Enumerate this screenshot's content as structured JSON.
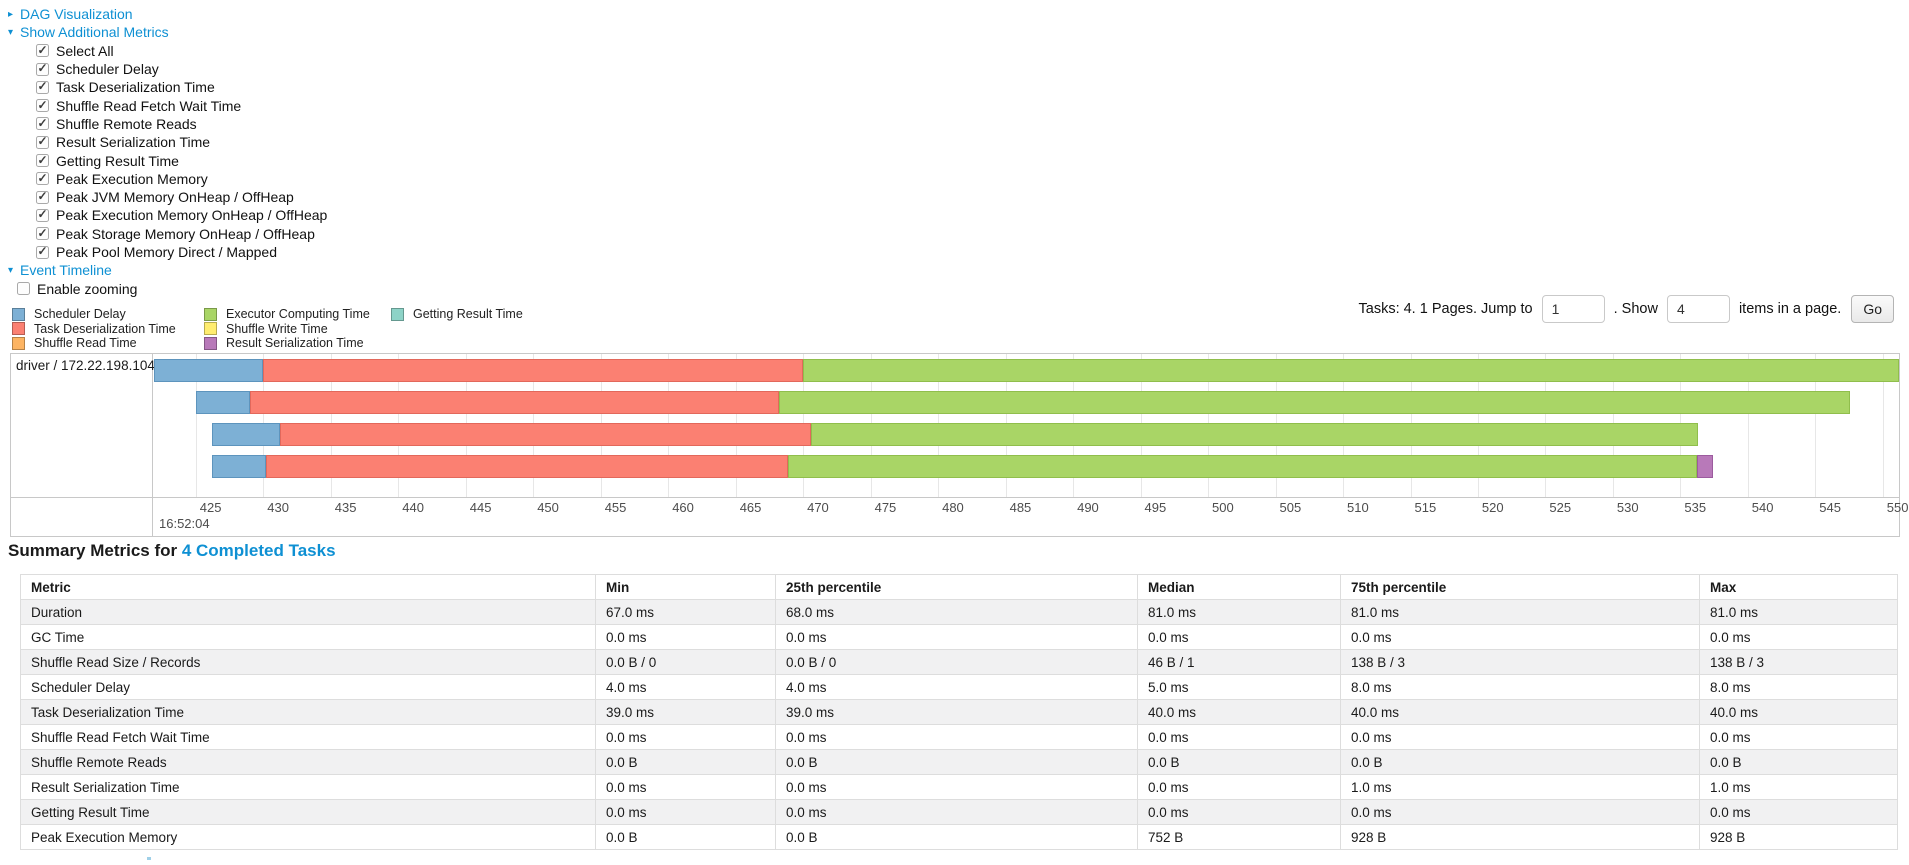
{
  "tree": {
    "dag_link": "DAG Visualization",
    "metrics_link": "Show Additional Metrics",
    "timeline_link": "Event Timeline",
    "metric_checkboxes": [
      {
        "label": "Select All",
        "checked": true
      },
      {
        "label": "Scheduler Delay",
        "checked": true
      },
      {
        "label": "Task Deserialization Time",
        "checked": true
      },
      {
        "label": "Shuffle Read Fetch Wait Time",
        "checked": true
      },
      {
        "label": "Shuffle Remote Reads",
        "checked": true
      },
      {
        "label": "Result Serialization Time",
        "checked": true
      },
      {
        "label": "Getting Result Time",
        "checked": true
      },
      {
        "label": "Peak Execution Memory",
        "checked": true
      },
      {
        "label": "Peak JVM Memory OnHeap / OffHeap",
        "checked": true
      },
      {
        "label": "Peak Execution Memory OnHeap / OffHeap",
        "checked": true
      },
      {
        "label": "Peak Storage Memory OnHeap / OffHeap",
        "checked": true
      },
      {
        "label": "Peak Pool Memory Direct / Mapped",
        "checked": true
      }
    ],
    "enable_zooming": {
      "label": "Enable zooming",
      "checked": false
    }
  },
  "legend": {
    "columns": [
      [
        {
          "label": "Scheduler Delay",
          "color": "#7DB0D5"
        },
        {
          "label": "Task Deserialization Time",
          "color": "#FB8072"
        },
        {
          "label": "Shuffle Read Time",
          "color": "#FDB462"
        }
      ],
      [
        {
          "label": "Executor Computing Time",
          "color": "#A9D566"
        },
        {
          "label": "Shuffle Write Time",
          "color": "#FFED6F"
        },
        {
          "label": "Result Serialization Time",
          "color": "#B879B9"
        }
      ],
      [
        {
          "label": "Getting Result Time",
          "color": "#8DD3C7"
        }
      ]
    ]
  },
  "pagination": {
    "prefix": "Tasks: 4. 1 Pages. Jump to",
    "jump_value": "1",
    "mid": ". Show",
    "show_value": "4",
    "suffix": "items in a page.",
    "go_label": "Go"
  },
  "chart_data": {
    "type": "timeline",
    "group_label": "driver / 172.22.198.104",
    "axis": {
      "domain_start": 421.9,
      "domain_end": 551.2,
      "tick_start": 425,
      "tick_step": 5,
      "tick_end": 550,
      "major_label": "16:52:04"
    },
    "colors": {
      "scheduler": {
        "fill": "#7DB0D5",
        "border": "#5D94BD"
      },
      "deserialization": {
        "fill": "#FB8072",
        "border": "#E2685B"
      },
      "compute": {
        "fill": "#A9D566",
        "border": "#90BE4C"
      },
      "result_ser": {
        "fill": "#B879B9",
        "border": "#9C5B9E"
      }
    },
    "tasks": [
      {
        "segments": [
          {
            "type": "scheduler",
            "from": 421.9,
            "to": 430.0
          },
          {
            "type": "deserialization",
            "from": 430.0,
            "to": 470.0
          },
          {
            "type": "compute",
            "from": 470.0,
            "to": 551.2
          }
        ]
      },
      {
        "segments": [
          {
            "type": "scheduler",
            "from": 425.0,
            "to": 429.0
          },
          {
            "type": "deserialization",
            "from": 429.0,
            "to": 468.2
          },
          {
            "type": "compute",
            "from": 468.2,
            "to": 547.6
          }
        ]
      },
      {
        "segments": [
          {
            "type": "scheduler",
            "from": 426.2,
            "to": 431.2
          },
          {
            "type": "deserialization",
            "from": 431.2,
            "to": 470.6
          },
          {
            "type": "compute",
            "from": 470.6,
            "to": 536.3
          }
        ]
      },
      {
        "segments": [
          {
            "type": "scheduler",
            "from": 426.2,
            "to": 430.2
          },
          {
            "type": "deserialization",
            "from": 430.2,
            "to": 468.9
          },
          {
            "type": "compute",
            "from": 468.9,
            "to": 536.2
          },
          {
            "type": "result_ser",
            "from": 536.2,
            "to": 537.4
          }
        ]
      }
    ]
  },
  "summary": {
    "title_prefix": "Summary Metrics for ",
    "title_link": "4 Completed Tasks",
    "columns": [
      "Metric",
      "Min",
      "25th percentile",
      "Median",
      "75th percentile",
      "Max"
    ],
    "rows": [
      [
        "Duration",
        "67.0 ms",
        "68.0 ms",
        "81.0 ms",
        "81.0 ms",
        "81.0 ms"
      ],
      [
        "GC Time",
        "0.0 ms",
        "0.0 ms",
        "0.0 ms",
        "0.0 ms",
        "0.0 ms"
      ],
      [
        "Shuffle Read Size / Records",
        "0.0 B / 0",
        "0.0 B / 0",
        "46 B / 1",
        "138 B / 3",
        "138 B / 3"
      ],
      [
        "Scheduler Delay",
        "4.0 ms",
        "4.0 ms",
        "5.0 ms",
        "8.0 ms",
        "8.0 ms"
      ],
      [
        "Task Deserialization Time",
        "39.0 ms",
        "39.0 ms",
        "40.0 ms",
        "40.0 ms",
        "40.0 ms"
      ],
      [
        "Shuffle Read Fetch Wait Time",
        "0.0 ms",
        "0.0 ms",
        "0.0 ms",
        "0.0 ms",
        "0.0 ms"
      ],
      [
        "Shuffle Remote Reads",
        "0.0 B",
        "0.0 B",
        "0.0 B",
        "0.0 B",
        "0.0 B"
      ],
      [
        "Result Serialization Time",
        "0.0 ms",
        "0.0 ms",
        "0.0 ms",
        "1.0 ms",
        "1.0 ms"
      ],
      [
        "Getting Result Time",
        "0.0 ms",
        "0.0 ms",
        "0.0 ms",
        "0.0 ms",
        "0.0 ms"
      ],
      [
        "Peak Execution Memory",
        "0.0 B",
        "0.0 B",
        "752 B",
        "928 B",
        "928 B"
      ]
    ]
  }
}
